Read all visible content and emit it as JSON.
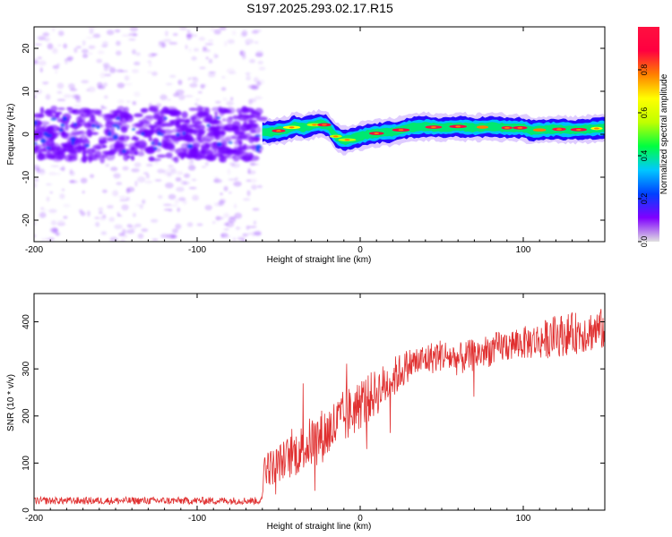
{
  "figure": {
    "title": "S197.2025.293.02.17.R15"
  },
  "chart_data": [
    {
      "type": "heatmap",
      "title": "S197.2025.293.02.17.R15",
      "xlabel": "Height of straight line (km)",
      "ylabel": "Frequency (Hz)",
      "xlim": [
        -200,
        150
      ],
      "ylim": [
        -25,
        25
      ],
      "xticks": [
        -200,
        -100,
        0,
        100
      ],
      "xtick_labels": [
        "-200",
        "-100",
        "0",
        "100"
      ],
      "yticks": [
        -20,
        -10,
        0,
        10,
        20
      ],
      "ytick_labels": [
        "-20",
        "-10",
        "0",
        "10",
        "20"
      ],
      "grid": false,
      "colorbar": {
        "label": "Normalized spectral amplitude",
        "range": [
          0,
          1
        ],
        "ticks": [
          0.0,
          0.2,
          0.4,
          0.6,
          0.8
        ],
        "tick_labels": [
          "0.0",
          "0.2",
          "0.4",
          "0.6",
          "0.8"
        ],
        "colormap": [
          "#e0e0e0",
          "#8000ff",
          "#0040ff",
          "#00c8ff",
          "#00ff40",
          "#c0ff00",
          "#ffff00",
          "#ff8000",
          "#ff0040",
          "#ff1040"
        ]
      },
      "noise_region": {
        "x_range": [
          -200,
          -60
        ],
        "freq_spread_hz": 25
      },
      "signal_trace": {
        "x": [
          -60,
          -55,
          -50,
          -45,
          -40,
          -35,
          -30,
          -25,
          -20,
          -15,
          -10,
          -5,
          0,
          5,
          10,
          15,
          20,
          25,
          30,
          40,
          50,
          60,
          70,
          80,
          90,
          100,
          105,
          110,
          120,
          130,
          140,
          150
        ],
        "freq_hz": [
          0.5,
          0.5,
          0.8,
          1.0,
          2.0,
          1.5,
          2.0,
          2.5,
          2.0,
          -0.5,
          -1.5,
          -1.0,
          -0.5,
          0.0,
          0.2,
          0.5,
          0.5,
          1.0,
          1.5,
          1.8,
          1.5,
          1.8,
          1.5,
          1.8,
          1.5,
          1.5,
          0.8,
          1.0,
          1.2,
          1.0,
          1.2,
          1.5
        ]
      }
    },
    {
      "type": "line",
      "xlabel": "Height of straight line (km)",
      "ylabel": "SNR (10 * v/v)",
      "xlim": [
        -200,
        150
      ],
      "ylim": [
        0,
        460
      ],
      "xticks": [
        -200,
        -100,
        0,
        100
      ],
      "xtick_labels": [
        "-200",
        "-100",
        "0",
        "100"
      ],
      "yticks": [
        0,
        100,
        200,
        300,
        400
      ],
      "ytick_labels": [
        "0",
        "100",
        "200",
        "300",
        "400"
      ],
      "grid": false,
      "series": [
        {
          "name": "SNR",
          "color": "#e03030",
          "x": [
            -200,
            -60,
            -59,
            -55,
            -50,
            -40,
            -30,
            -20,
            -10,
            0,
            10,
            20,
            25,
            30,
            40,
            50,
            60,
            70,
            80,
            90,
            100,
            110,
            120,
            130,
            140,
            150
          ],
          "mean": [
            20,
            20,
            100,
            90,
            100,
            120,
            145,
            165,
            195,
            225,
            250,
            280,
            295,
            310,
            320,
            330,
            320,
            330,
            340,
            350,
            355,
            360,
            370,
            375,
            380,
            385
          ],
          "noise_amplitude": [
            8,
            8,
            40,
            40,
            40,
            50,
            55,
            60,
            60,
            55,
            50,
            45,
            40,
            35,
            35,
            35,
            35,
            35,
            35,
            35,
            35,
            40,
            45,
            45,
            45,
            45
          ]
        }
      ]
    }
  ]
}
